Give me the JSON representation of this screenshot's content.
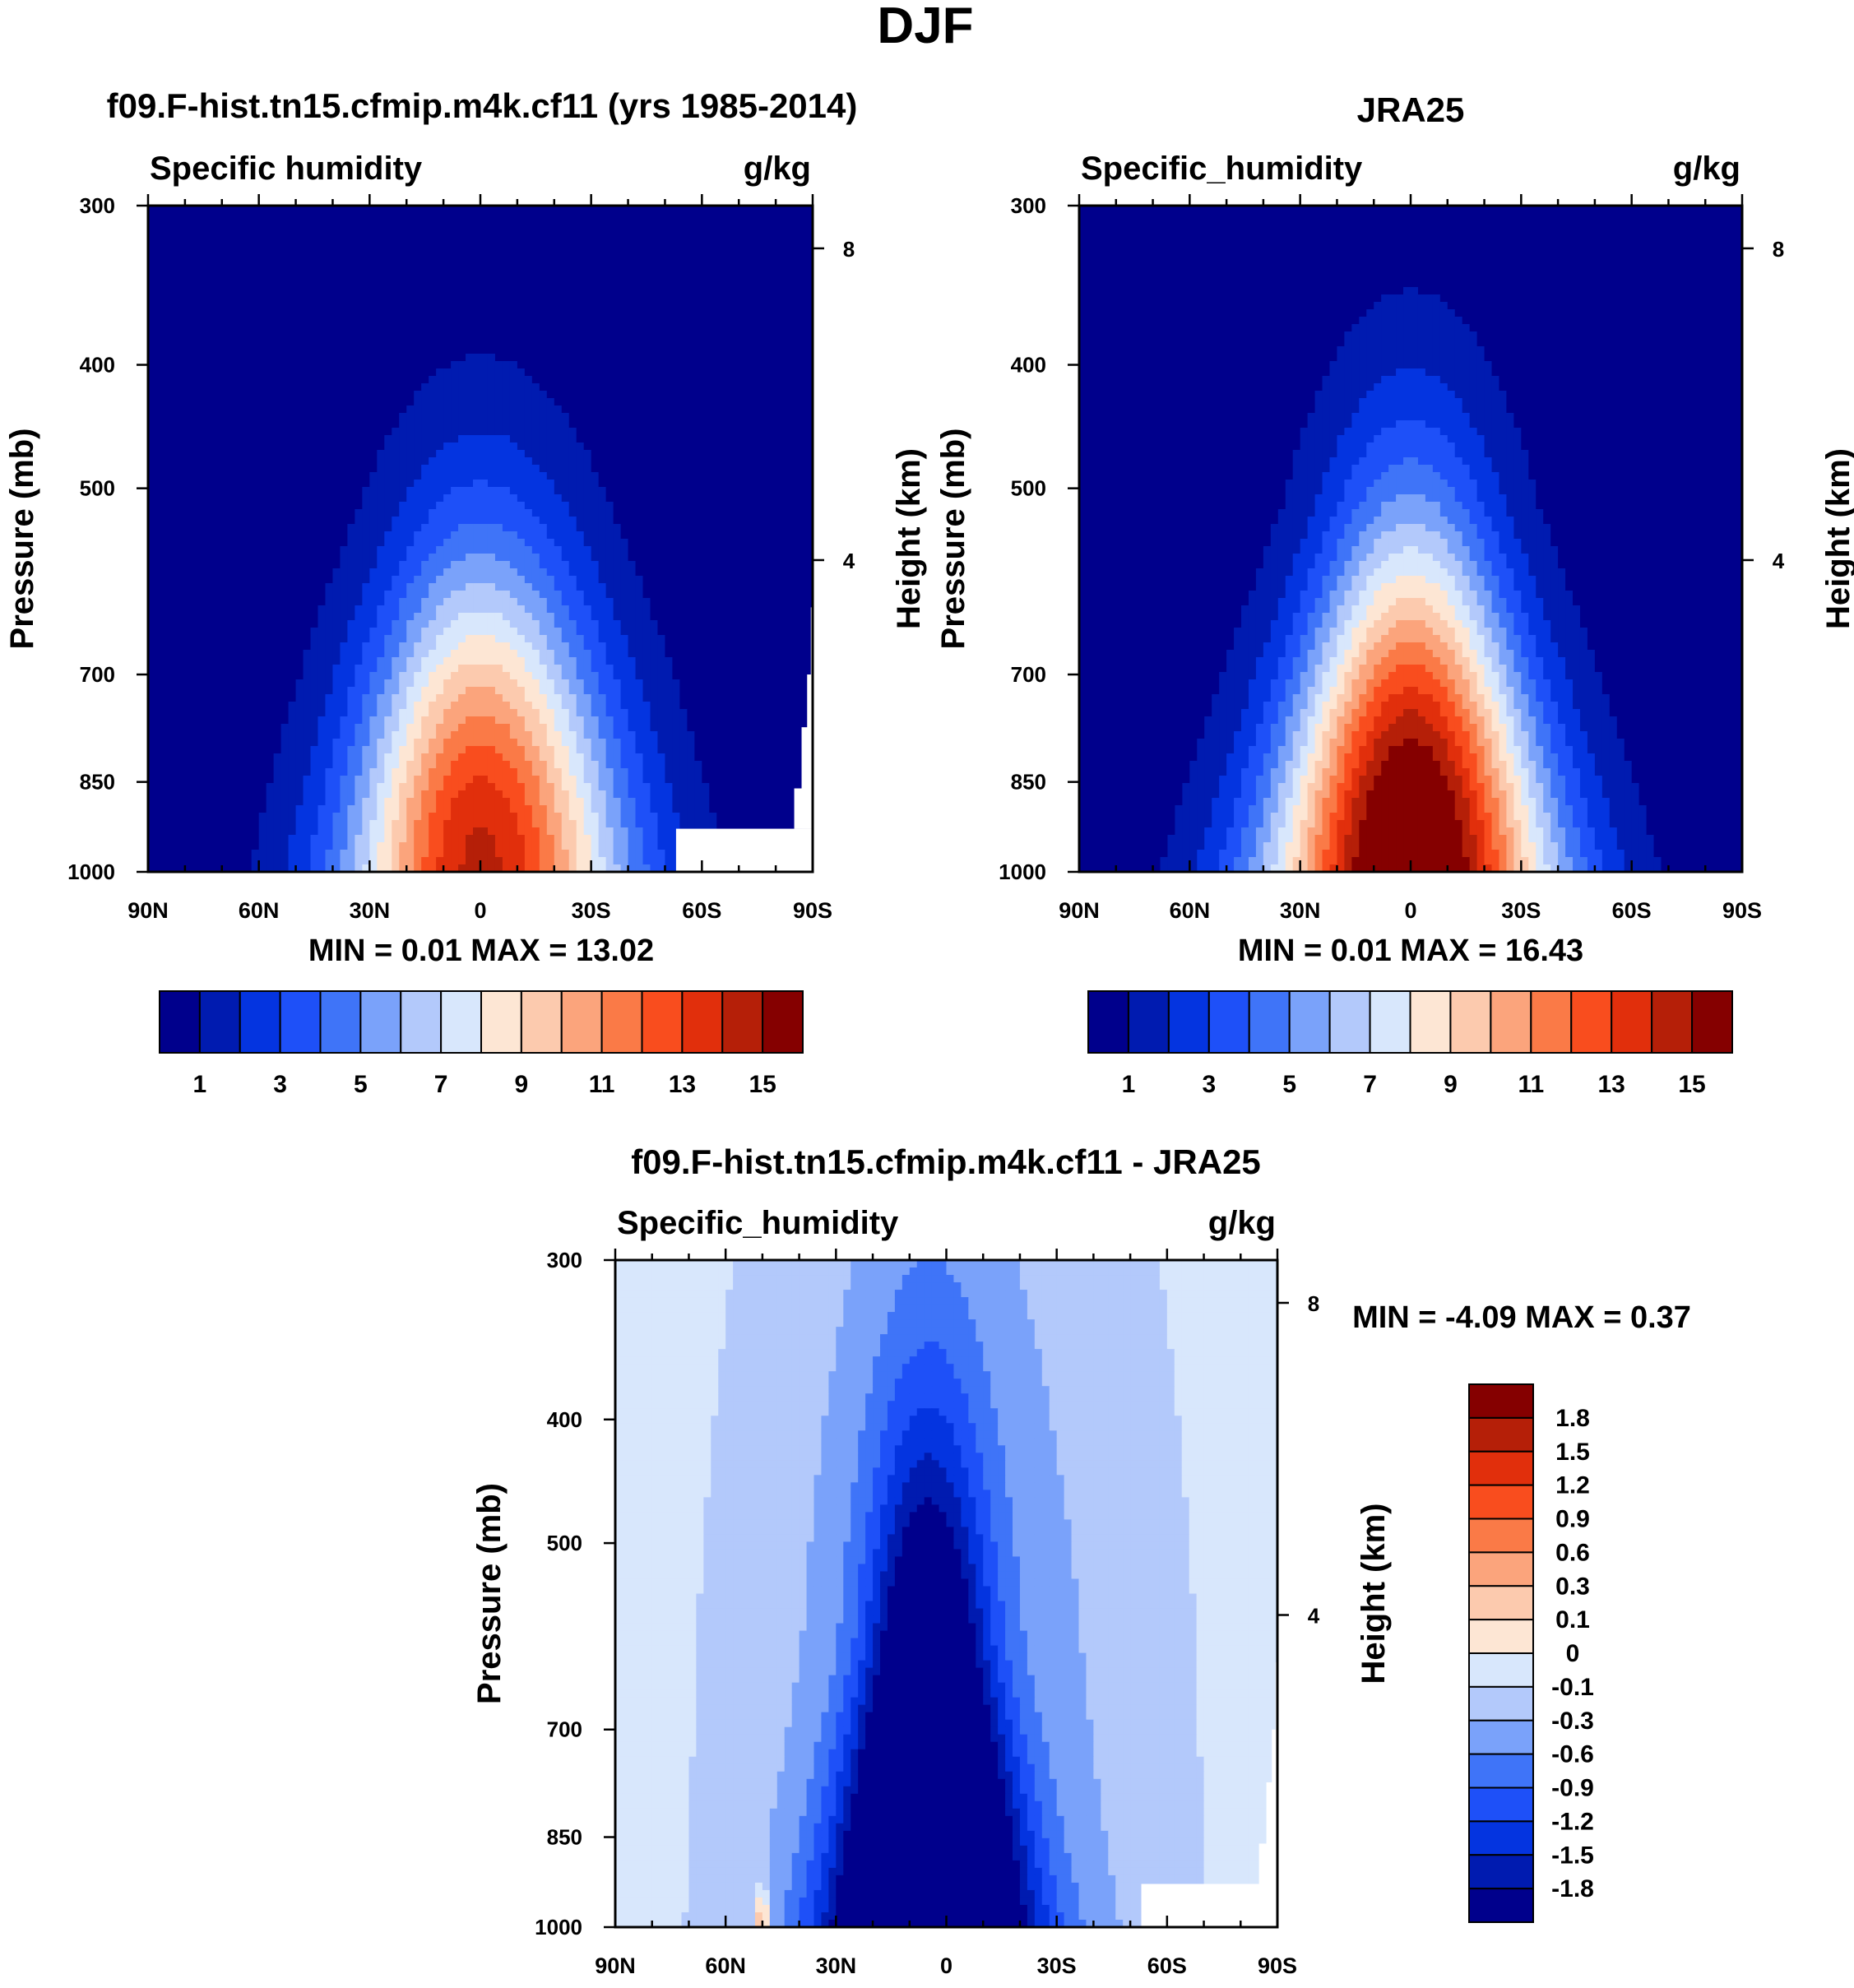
{
  "figure_title": "DJF",
  "chart_data": [
    {
      "type": "heatmap",
      "id": "model",
      "title": "f09.F-hist.tn15.cfmip.m4k.cf11 (yrs 1985-2014)",
      "left_label": "Specific humidity",
      "right_label": "g/kg",
      "ylabel": "Pressure (mb)",
      "ylabel_right": "Height (km)",
      "xticks": [
        "90N",
        "60N",
        "30N",
        "0",
        "30S",
        "60S",
        "90S"
      ],
      "x_values": [
        90,
        60,
        30,
        0,
        -30,
        -60,
        -90
      ],
      "yticks": [
        "300",
        "400",
        "500",
        "700",
        "850",
        "1000"
      ],
      "y_values": [
        300,
        400,
        500,
        700,
        850,
        1000
      ],
      "ylim": [
        300,
        1000
      ],
      "xlim": [
        90,
        -90
      ],
      "height_ticks": [
        "8",
        "4"
      ],
      "height_values": [
        8,
        4
      ],
      "min_label": "MIN =",
      "min_value": "0.01",
      "max_label": "MAX =",
      "max_value": "13.02",
      "peak_lat": 0,
      "peak_value": 13.02,
      "colorbar_labels": [
        "1",
        "3",
        "5",
        "7",
        "9",
        "11",
        "13",
        "15"
      ]
    },
    {
      "type": "heatmap",
      "id": "obs",
      "title": "JRA25",
      "left_label": "Specific_humidity",
      "right_label": "g/kg",
      "ylabel": "Pressure (mb)",
      "ylabel_right": "Height (km)",
      "xticks": [
        "90N",
        "60N",
        "30N",
        "0",
        "30S",
        "60S",
        "90S"
      ],
      "x_values": [
        90,
        60,
        30,
        0,
        -30,
        -60,
        -90
      ],
      "yticks": [
        "300",
        "400",
        "500",
        "700",
        "850",
        "1000"
      ],
      "y_values": [
        300,
        400,
        500,
        700,
        850,
        1000
      ],
      "ylim": [
        300,
        1000
      ],
      "xlim": [
        90,
        -90
      ],
      "height_ticks": [
        "8",
        "4"
      ],
      "height_values": [
        8,
        4
      ],
      "min_label": "MIN =",
      "min_value": "0.01",
      "max_label": "MAX =",
      "max_value": "16.43",
      "peak_lat": 0,
      "peak_value": 16.43,
      "colorbar_labels": [
        "1",
        "3",
        "5",
        "7",
        "9",
        "11",
        "13",
        "15"
      ]
    },
    {
      "type": "heatmap",
      "id": "diff",
      "title": "f09.F-hist.tn15.cfmip.m4k.cf11 - JRA25",
      "left_label": "Specific_humidity",
      "right_label": "g/kg",
      "ylabel": "Pressure (mb)",
      "ylabel_right": "Height (km)",
      "xticks": [
        "90N",
        "60N",
        "30N",
        "0",
        "30S",
        "60S",
        "90S"
      ],
      "x_values": [
        90,
        60,
        30,
        0,
        -30,
        -60,
        -90
      ],
      "yticks": [
        "300",
        "400",
        "500",
        "700",
        "850",
        "1000"
      ],
      "y_values": [
        300,
        400,
        500,
        700,
        850,
        1000
      ],
      "ylim": [
        300,
        1000
      ],
      "xlim": [
        90,
        -90
      ],
      "height_ticks": [
        "8",
        "4"
      ],
      "height_values": [
        8,
        4
      ],
      "min_label": "MIN =",
      "min_value": "-4.09",
      "max_label": "MAX =",
      "max_value": "0.37",
      "min_lat": 5,
      "min_field_value": -4.09,
      "colorbar_labels": [
        "1.8",
        "1.5",
        "1.2",
        "0.9",
        "0.6",
        "0.3",
        "0.1",
        "0",
        "-0.1",
        "-0.3",
        "-0.6",
        "-0.9",
        "-1.2",
        "-1.5",
        "-1.8"
      ]
    }
  ],
  "colors": {
    "abs_scale": [
      "#00008c",
      "#001bb0",
      "#0434e0",
      "#1e50f8",
      "#3f74f8",
      "#7aa2fa",
      "#b3c9fb",
      "#d8e7fc",
      "#fde6d4",
      "#fccaae",
      "#fba47c",
      "#fa7a47",
      "#f94d1e",
      "#e12f0c",
      "#b51f08",
      "#850000"
    ],
    "diff_scale": [
      "#850000",
      "#b51f08",
      "#e12f0c",
      "#f94d1e",
      "#fa7a47",
      "#fba47c",
      "#fccaae",
      "#fde6d4",
      "#d8e7fc",
      "#b3c9fb",
      "#7aa2fa",
      "#3f74f8",
      "#1e50f8",
      "#0434e0",
      "#001bb0",
      "#00008c"
    ]
  }
}
